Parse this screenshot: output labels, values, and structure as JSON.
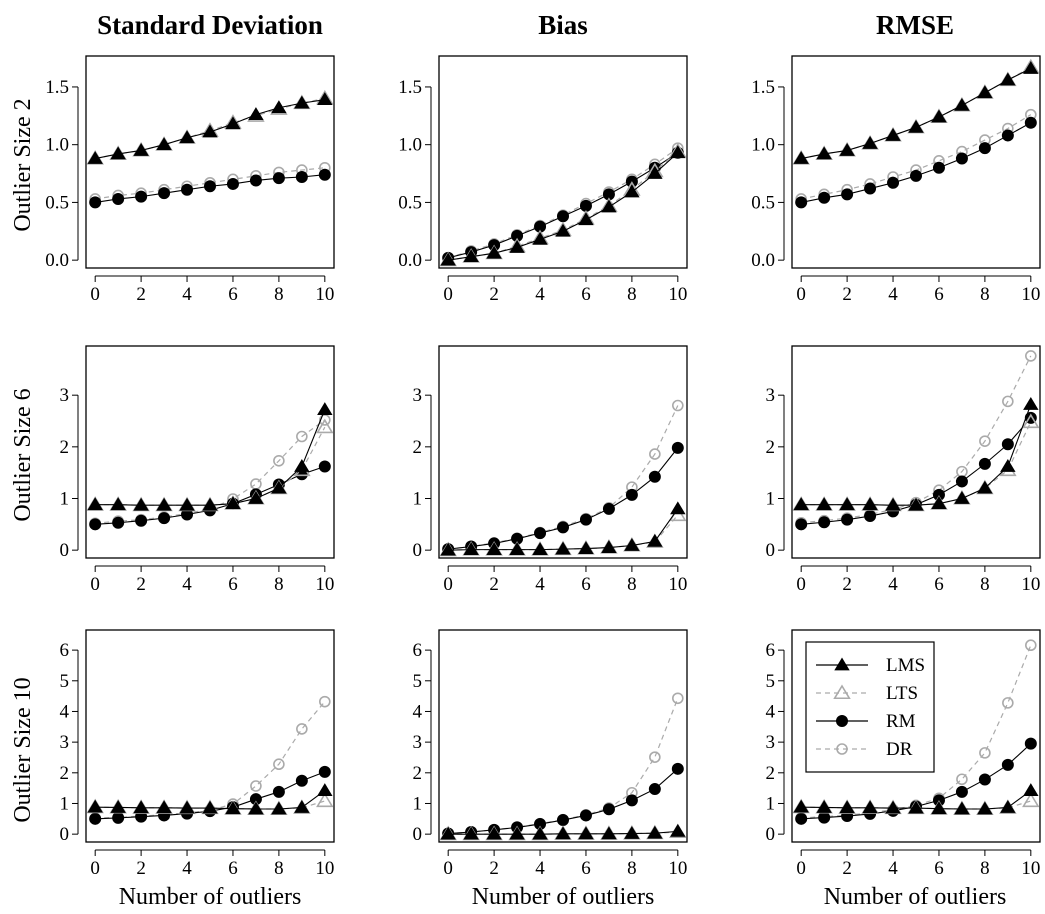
{
  "column_titles": [
    "Standard Deviation",
    "Bias",
    "RMSE"
  ],
  "row_labels": [
    "Outlier Size 2",
    "Outlier Size 6",
    "Outlier Size 10"
  ],
  "x_axis_label": "Number of outliers",
  "legend": {
    "placement": "top-left of bottom-right panel",
    "entries": [
      {
        "name": "LMS",
        "marker": "filled-triangle",
        "line": "solid",
        "color": "#000000"
      },
      {
        "name": "LTS",
        "marker": "open-triangle",
        "line": "dashed",
        "color": "#aaaaaa"
      },
      {
        "name": "RM",
        "marker": "filled-circle",
        "line": "solid",
        "color": "#000000"
      },
      {
        "name": "DR",
        "marker": "open-circle",
        "line": "dashed",
        "color": "#aaaaaa"
      }
    ]
  },
  "chart_data": [
    {
      "type": "line",
      "row": 0,
      "col": 0,
      "title": "Standard Deviation",
      "ylabel": "Outlier Size 2",
      "xlabel": "",
      "x": [
        0,
        1,
        2,
        3,
        4,
        5,
        6,
        7,
        8,
        9,
        10
      ],
      "xlim": [
        0,
        10
      ],
      "ylim": [
        0,
        1.7
      ],
      "yticks": [
        0,
        0.5,
        1,
        1.5
      ],
      "ytick_labels": [
        "0.0",
        "0.5",
        "1.0",
        "1.5"
      ],
      "series": [
        {
          "name": "LMS",
          "values": [
            0.88,
            0.92,
            0.95,
            1.0,
            1.06,
            1.11,
            1.18,
            1.26,
            1.32,
            1.36,
            1.39
          ]
        },
        {
          "name": "LTS",
          "values": [
            0.88,
            0.92,
            0.95,
            1.0,
            1.06,
            1.12,
            1.19,
            1.25,
            1.31,
            1.36,
            1.4
          ]
        },
        {
          "name": "RM",
          "values": [
            0.5,
            0.53,
            0.55,
            0.58,
            0.61,
            0.64,
            0.66,
            0.69,
            0.71,
            0.72,
            0.74
          ]
        },
        {
          "name": "DR",
          "values": [
            0.53,
            0.56,
            0.58,
            0.61,
            0.64,
            0.67,
            0.7,
            0.73,
            0.76,
            0.78,
            0.8
          ]
        }
      ]
    },
    {
      "type": "line",
      "row": 0,
      "col": 1,
      "title": "Bias",
      "ylabel": "",
      "xlabel": "",
      "x": [
        0,
        1,
        2,
        3,
        4,
        5,
        6,
        7,
        8,
        9,
        10
      ],
      "xlim": [
        0,
        10
      ],
      "ylim": [
        0,
        1.7
      ],
      "yticks": [
        0,
        0.5,
        1,
        1.5
      ],
      "ytick_labels": [
        "0.0",
        "0.5",
        "1.0",
        "1.5"
      ],
      "series": [
        {
          "name": "LMS",
          "values": [
            0.0,
            0.03,
            0.06,
            0.11,
            0.18,
            0.25,
            0.35,
            0.46,
            0.59,
            0.75,
            0.93
          ]
        },
        {
          "name": "LTS",
          "values": [
            0.0,
            0.03,
            0.06,
            0.12,
            0.19,
            0.26,
            0.36,
            0.47,
            0.61,
            0.77,
            0.94
          ]
        },
        {
          "name": "RM",
          "values": [
            0.02,
            0.07,
            0.13,
            0.21,
            0.29,
            0.38,
            0.47,
            0.57,
            0.68,
            0.8,
            0.93
          ]
        },
        {
          "name": "DR",
          "values": [
            0.02,
            0.08,
            0.14,
            0.22,
            0.3,
            0.39,
            0.49,
            0.59,
            0.7,
            0.83,
            0.97
          ]
        }
      ]
    },
    {
      "type": "line",
      "row": 0,
      "col": 2,
      "title": "RMSE",
      "ylabel": "",
      "xlabel": "",
      "x": [
        0,
        1,
        2,
        3,
        4,
        5,
        6,
        7,
        8,
        9,
        10
      ],
      "xlim": [
        0,
        10
      ],
      "ylim": [
        0,
        1.7
      ],
      "yticks": [
        0,
        0.5,
        1,
        1.5
      ],
      "ytick_labels": [
        "0.0",
        "0.5",
        "1.0",
        "1.5"
      ],
      "series": [
        {
          "name": "LMS",
          "values": [
            0.88,
            0.92,
            0.95,
            1.01,
            1.08,
            1.15,
            1.24,
            1.34,
            1.45,
            1.56,
            1.66
          ]
        },
        {
          "name": "LTS",
          "values": [
            0.88,
            0.92,
            0.95,
            1.01,
            1.08,
            1.15,
            1.24,
            1.34,
            1.45,
            1.56,
            1.67
          ]
        },
        {
          "name": "RM",
          "values": [
            0.5,
            0.54,
            0.57,
            0.62,
            0.67,
            0.73,
            0.8,
            0.88,
            0.97,
            1.08,
            1.19
          ]
        },
        {
          "name": "DR",
          "values": [
            0.53,
            0.57,
            0.61,
            0.66,
            0.72,
            0.78,
            0.86,
            0.94,
            1.04,
            1.14,
            1.26
          ]
        }
      ]
    },
    {
      "type": "line",
      "row": 1,
      "col": 0,
      "title": "",
      "ylabel": "Outlier Size 6",
      "xlabel": "",
      "x": [
        0,
        1,
        2,
        3,
        4,
        5,
        6,
        7,
        8,
        9,
        10
      ],
      "xlim": [
        0,
        10
      ],
      "ylim": [
        0,
        3.8
      ],
      "yticks": [
        0,
        1,
        2,
        3
      ],
      "ytick_labels": [
        "0",
        "1",
        "2",
        "3"
      ],
      "series": [
        {
          "name": "LMS",
          "values": [
            0.88,
            0.88,
            0.87,
            0.87,
            0.87,
            0.87,
            0.9,
            1.0,
            1.2,
            1.62,
            2.72
          ]
        },
        {
          "name": "LTS",
          "values": [
            0.88,
            0.88,
            0.87,
            0.87,
            0.87,
            0.87,
            0.9,
            1.0,
            1.2,
            1.55,
            2.38
          ]
        },
        {
          "name": "RM",
          "values": [
            0.5,
            0.53,
            0.57,
            0.62,
            0.69,
            0.77,
            0.9,
            1.08,
            1.27,
            1.47,
            1.62
          ]
        },
        {
          "name": "DR",
          "values": [
            0.52,
            0.56,
            0.59,
            0.64,
            0.71,
            0.8,
            0.99,
            1.28,
            1.73,
            2.2,
            2.52
          ]
        }
      ]
    },
    {
      "type": "line",
      "row": 1,
      "col": 1,
      "title": "",
      "ylabel": "",
      "xlabel": "",
      "x": [
        0,
        1,
        2,
        3,
        4,
        5,
        6,
        7,
        8,
        9,
        10
      ],
      "xlim": [
        0,
        10
      ],
      "ylim": [
        0,
        3.8
      ],
      "yticks": [
        0,
        1,
        2,
        3
      ],
      "ytick_labels": [
        "0",
        "1",
        "2",
        "3"
      ],
      "series": [
        {
          "name": "LMS",
          "values": [
            0.0,
            0.01,
            0.01,
            0.01,
            0.01,
            0.02,
            0.03,
            0.05,
            0.09,
            0.17,
            0.8
          ]
        },
        {
          "name": "LTS",
          "values": [
            0.0,
            0.01,
            0.01,
            0.01,
            0.01,
            0.02,
            0.03,
            0.05,
            0.09,
            0.16,
            0.68
          ]
        },
        {
          "name": "RM",
          "values": [
            0.02,
            0.07,
            0.13,
            0.22,
            0.33,
            0.44,
            0.59,
            0.8,
            1.07,
            1.42,
            1.98
          ]
        },
        {
          "name": "DR",
          "values": [
            0.02,
            0.07,
            0.14,
            0.23,
            0.34,
            0.46,
            0.61,
            0.82,
            1.22,
            1.86,
            2.8
          ]
        }
      ]
    },
    {
      "type": "line",
      "row": 1,
      "col": 2,
      "title": "",
      "ylabel": "",
      "xlabel": "",
      "x": [
        0,
        1,
        2,
        3,
        4,
        5,
        6,
        7,
        8,
        9,
        10
      ],
      "xlim": [
        0,
        10
      ],
      "ylim": [
        0,
        3.8
      ],
      "yticks": [
        0,
        1,
        2,
        3
      ],
      "ytick_labels": [
        "0",
        "1",
        "2",
        "3"
      ],
      "series": [
        {
          "name": "LMS",
          "values": [
            0.88,
            0.88,
            0.88,
            0.88,
            0.87,
            0.87,
            0.9,
            1.0,
            1.2,
            1.62,
            2.82
          ]
        },
        {
          "name": "LTS",
          "values": [
            0.88,
            0.88,
            0.88,
            0.88,
            0.87,
            0.87,
            0.9,
            1.0,
            1.2,
            1.55,
            2.48
          ]
        },
        {
          "name": "RM",
          "values": [
            0.5,
            0.54,
            0.59,
            0.66,
            0.75,
            0.88,
            1.07,
            1.33,
            1.67,
            2.05,
            2.56
          ]
        },
        {
          "name": "DR",
          "values": [
            0.53,
            0.57,
            0.62,
            0.69,
            0.79,
            0.92,
            1.16,
            1.52,
            2.11,
            2.88,
            3.76
          ]
        }
      ]
    },
    {
      "type": "line",
      "row": 2,
      "col": 0,
      "title": "",
      "ylabel": "Outlier Size 10",
      "xlabel": "Number of outliers",
      "x": [
        0,
        1,
        2,
        3,
        4,
        5,
        6,
        7,
        8,
        9,
        10
      ],
      "xlim": [
        0,
        10
      ],
      "ylim": [
        0,
        6.4
      ],
      "yticks": [
        0,
        1,
        2,
        3,
        4,
        5,
        6
      ],
      "ytick_labels": [
        "0",
        "1",
        "2",
        "3",
        "4",
        "5",
        "6"
      ],
      "series": [
        {
          "name": "LMS",
          "values": [
            0.88,
            0.87,
            0.86,
            0.86,
            0.85,
            0.85,
            0.83,
            0.82,
            0.82,
            0.87,
            1.42
          ]
        },
        {
          "name": "LTS",
          "values": [
            0.88,
            0.87,
            0.86,
            0.86,
            0.85,
            0.85,
            0.83,
            0.82,
            0.82,
            0.86,
            1.08
          ]
        },
        {
          "name": "RM",
          "values": [
            0.5,
            0.53,
            0.57,
            0.61,
            0.67,
            0.75,
            0.88,
            1.14,
            1.38,
            1.74,
            2.03
          ]
        },
        {
          "name": "DR",
          "values": [
            0.52,
            0.55,
            0.59,
            0.63,
            0.69,
            0.78,
            0.98,
            1.57,
            2.28,
            3.43,
            4.32
          ]
        }
      ]
    },
    {
      "type": "line",
      "row": 2,
      "col": 1,
      "title": "",
      "ylabel": "",
      "xlabel": "Number of outliers",
      "x": [
        0,
        1,
        2,
        3,
        4,
        5,
        6,
        7,
        8,
        9,
        10
      ],
      "xlim": [
        0,
        10
      ],
      "ylim": [
        0,
        6.4
      ],
      "yticks": [
        0,
        1,
        2,
        3,
        4,
        5,
        6
      ],
      "ytick_labels": [
        "0",
        "1",
        "2",
        "3",
        "4",
        "5",
        "6"
      ],
      "series": [
        {
          "name": "LMS",
          "values": [
            0.0,
            0.0,
            0.0,
            0.0,
            0.0,
            0.01,
            0.01,
            0.01,
            0.02,
            0.03,
            0.09
          ]
        },
        {
          "name": "LTS",
          "values": [
            0.0,
            0.0,
            0.0,
            0.0,
            0.0,
            0.01,
            0.01,
            0.01,
            0.02,
            0.03,
            0.07
          ]
        },
        {
          "name": "RM",
          "values": [
            0.02,
            0.07,
            0.14,
            0.22,
            0.33,
            0.46,
            0.61,
            0.81,
            1.1,
            1.47,
            2.13
          ]
        },
        {
          "name": "DR",
          "values": [
            0.02,
            0.07,
            0.14,
            0.23,
            0.34,
            0.47,
            0.63,
            0.85,
            1.35,
            2.51,
            4.43
          ]
        }
      ]
    },
    {
      "type": "line",
      "row": 2,
      "col": 2,
      "title": "",
      "ylabel": "",
      "xlabel": "Number of outliers",
      "x": [
        0,
        1,
        2,
        3,
        4,
        5,
        6,
        7,
        8,
        9,
        10
      ],
      "xlim": [
        0,
        10
      ],
      "ylim": [
        0,
        6.4
      ],
      "yticks": [
        0,
        1,
        2,
        3,
        4,
        5,
        6
      ],
      "ytick_labels": [
        "0",
        "1",
        "2",
        "3",
        "4",
        "5",
        "6"
      ],
      "series": [
        {
          "name": "LMS",
          "values": [
            0.88,
            0.87,
            0.86,
            0.86,
            0.85,
            0.85,
            0.83,
            0.82,
            0.82,
            0.87,
            1.42
          ]
        },
        {
          "name": "LTS",
          "values": [
            0.88,
            0.87,
            0.86,
            0.86,
            0.85,
            0.85,
            0.83,
            0.82,
            0.82,
            0.86,
            1.08
          ]
        },
        {
          "name": "RM",
          "values": [
            0.5,
            0.54,
            0.59,
            0.66,
            0.76,
            0.9,
            1.1,
            1.38,
            1.78,
            2.26,
            2.95
          ]
        },
        {
          "name": "DR",
          "values": [
            0.53,
            0.57,
            0.62,
            0.69,
            0.8,
            0.94,
            1.17,
            1.79,
            2.65,
            4.28,
            6.16
          ]
        }
      ]
    }
  ]
}
